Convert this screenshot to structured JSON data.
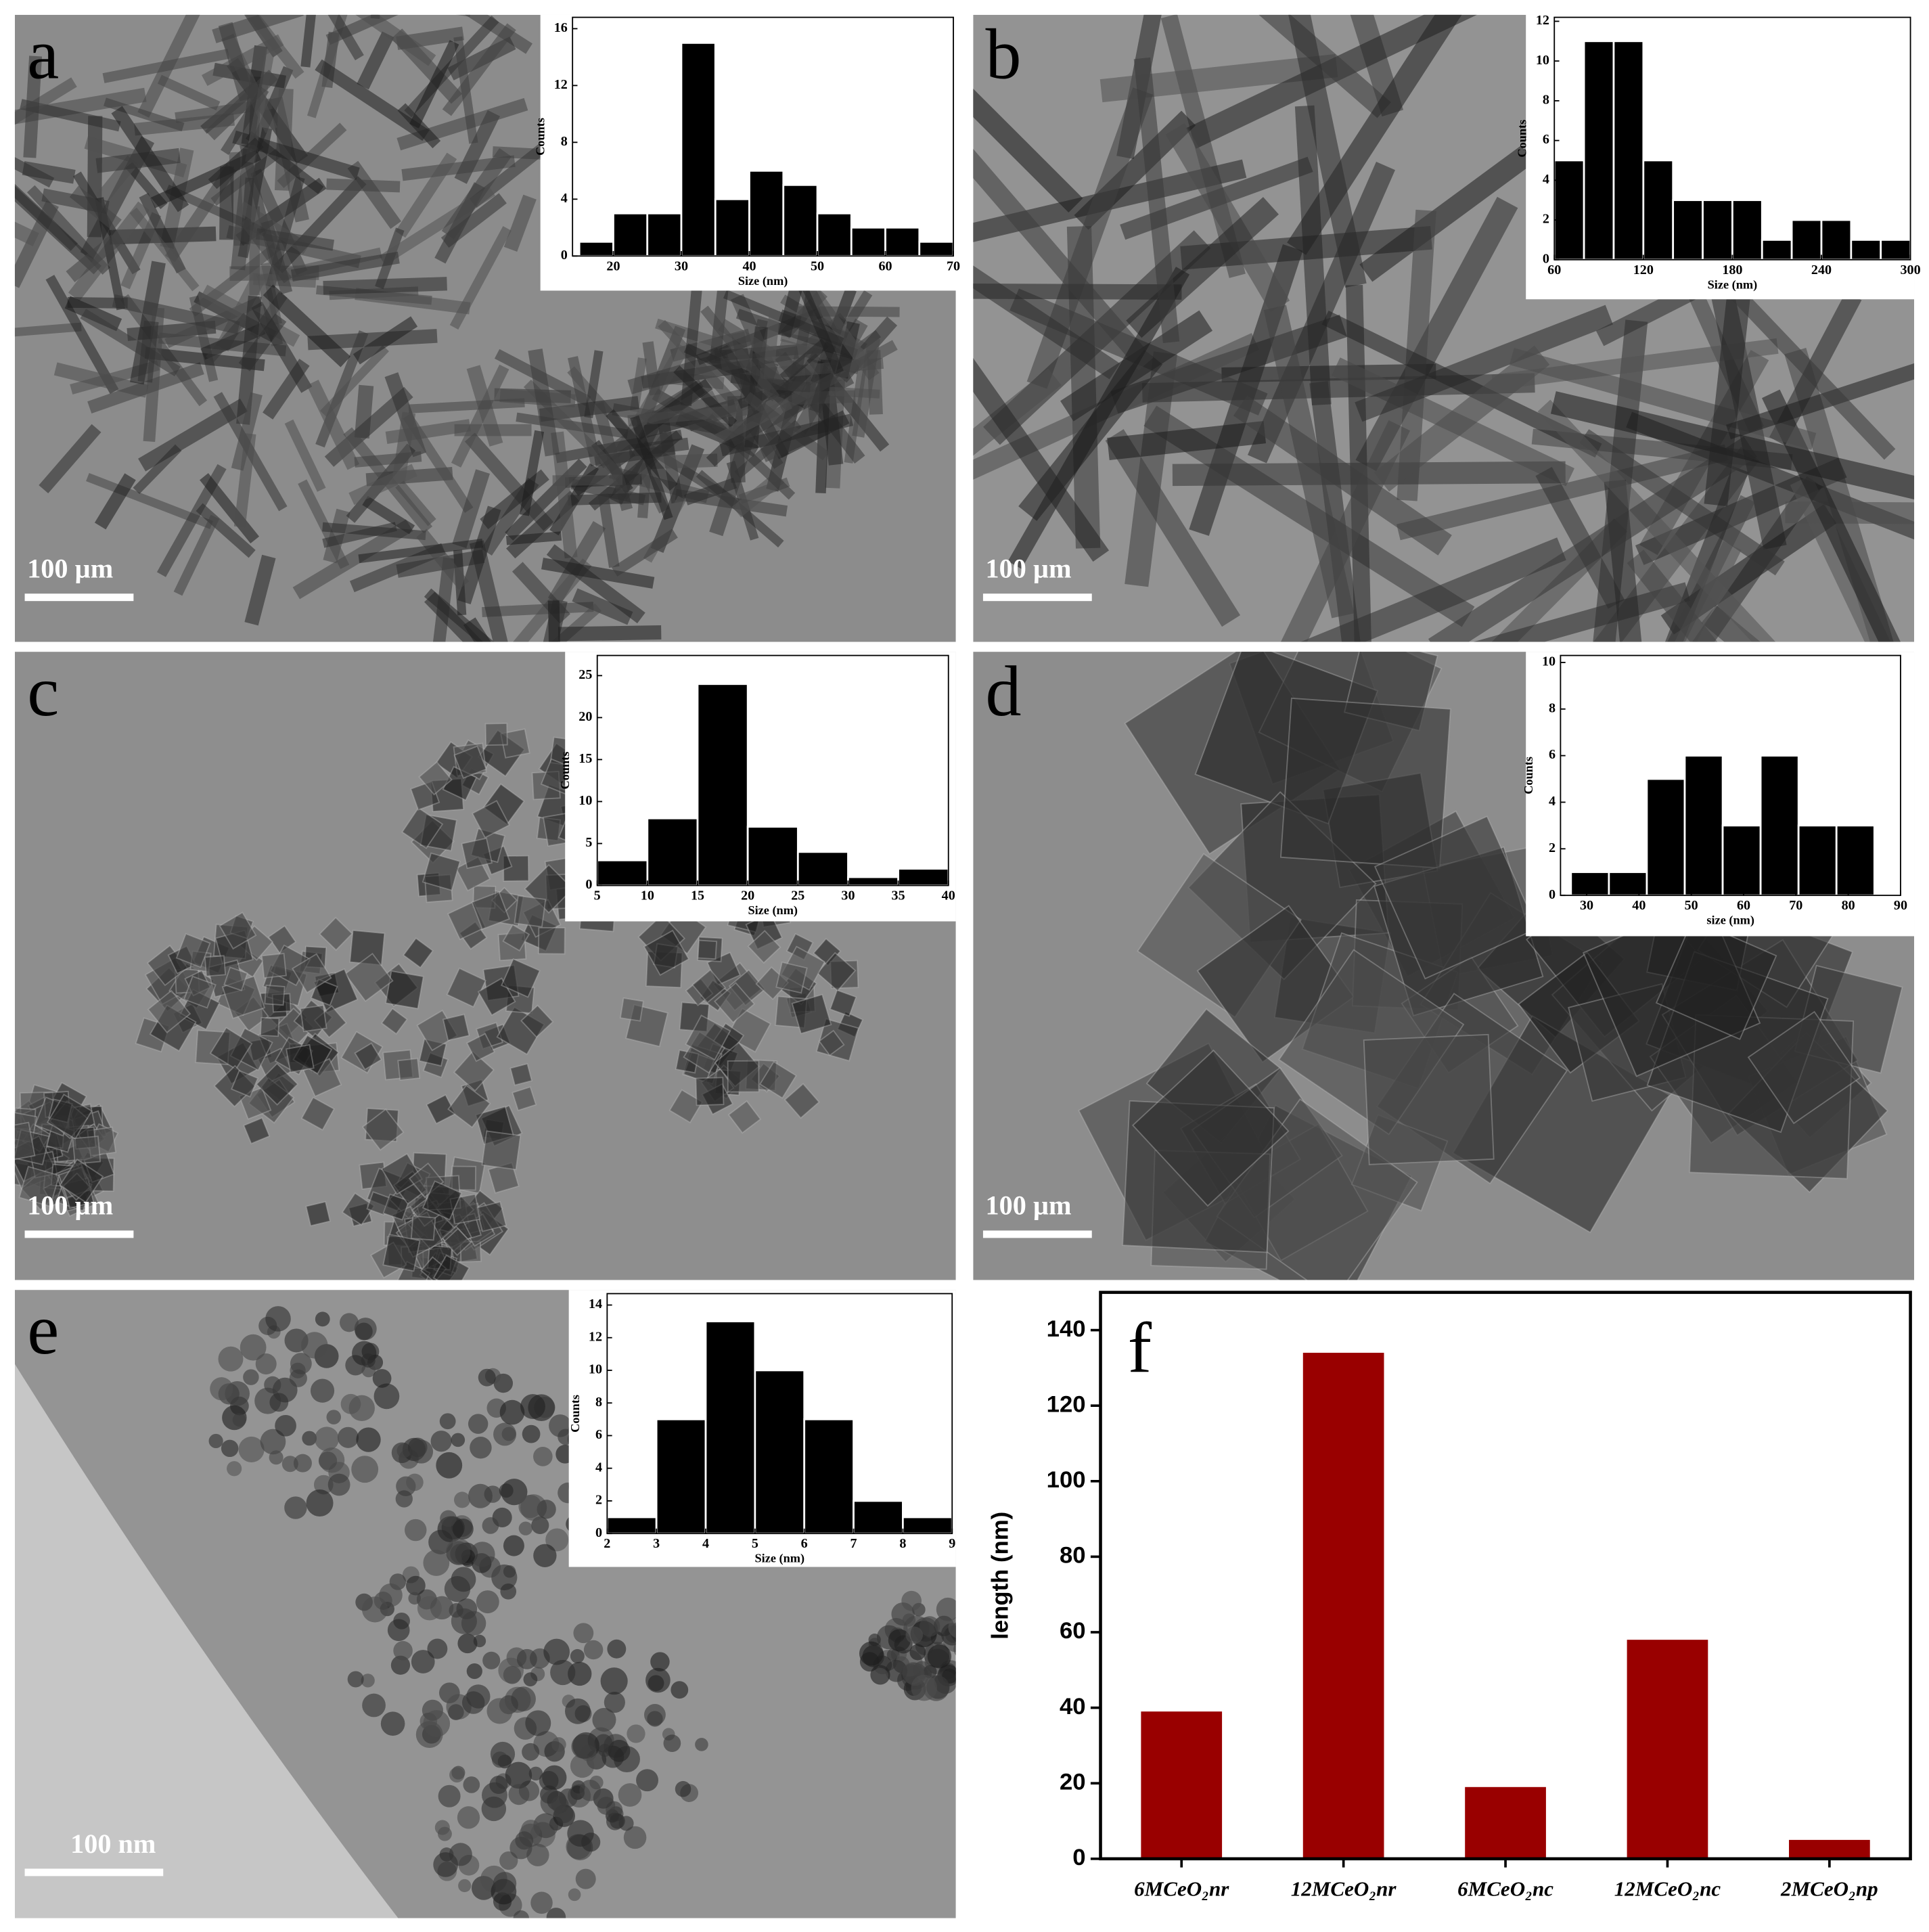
{
  "chart_data": [
    {
      "type": "histogram",
      "panel_label": "a",
      "scale_bar": "100 µm",
      "xlabel": "Size (nm)",
      "ylabel": "Counts",
      "color": "#000000",
      "bins": [
        15,
        20,
        25,
        30,
        35,
        40,
        45,
        50,
        55,
        60,
        65,
        70
      ],
      "values": [
        1,
        3,
        3,
        15,
        4,
        6,
        5,
        3,
        2,
        2,
        1
      ],
      "xlim": [
        14,
        70
      ],
      "xticks": [
        20,
        30,
        40,
        50,
        60,
        70
      ],
      "ylim": [
        0,
        16.8
      ],
      "yticks": [
        0,
        4,
        8,
        12,
        16
      ]
    },
    {
      "type": "histogram",
      "panel_label": "b",
      "scale_bar": "100 µm",
      "xlabel": "Size (nm)",
      "ylabel": "Counts",
      "color": "#000000",
      "bins": [
        60,
        80,
        100,
        120,
        140,
        160,
        180,
        200,
        220,
        240,
        260,
        280,
        300
      ],
      "values": [
        5,
        11,
        11,
        5,
        3,
        3,
        3,
        1,
        2,
        2,
        1,
        1
      ],
      "xlim": [
        60,
        300
      ],
      "xticks": [
        60,
        120,
        180,
        240,
        300
      ],
      "ylim": [
        0,
        12.2
      ],
      "yticks": [
        0,
        2,
        4,
        6,
        8,
        10,
        12
      ]
    },
    {
      "type": "histogram",
      "panel_label": "c",
      "scale_bar": "100 µm",
      "xlabel": "Size (nm)",
      "ylabel": "Counts",
      "color": "#000000",
      "bins": [
        5,
        10,
        15,
        20,
        25,
        30,
        35,
        40
      ],
      "values": [
        3,
        8,
        24,
        7,
        4,
        1,
        2
      ],
      "xlim": [
        5,
        40
      ],
      "xticks": [
        5,
        10,
        15,
        20,
        25,
        30,
        35,
        40
      ],
      "ylim": [
        0,
        27.4
      ],
      "yticks": [
        0,
        5,
        10,
        15,
        20,
        25
      ]
    },
    {
      "type": "histogram",
      "panel_label": "d",
      "scale_bar": "100 µm",
      "xlabel": "size (nm)",
      "ylabel": "Counts",
      "color": "#000000",
      "bins": [
        27,
        34.25,
        41.5,
        48.75,
        56,
        63.25,
        70.5,
        77.75,
        85
      ],
      "values": [
        1,
        1,
        5,
        6,
        3,
        6,
        3,
        3
      ],
      "xlim": [
        25,
        90
      ],
      "xticks": [
        30,
        40,
        50,
        60,
        70,
        80,
        90
      ],
      "ylim": [
        0,
        10.3
      ],
      "yticks": [
        0,
        2,
        4,
        6,
        8,
        10
      ]
    },
    {
      "type": "histogram",
      "panel_label": "e",
      "scale_bar": "100 nm",
      "xlabel": "Size (nm)",
      "ylabel": "Counts",
      "color": "#000000",
      "bins": [
        2,
        3,
        4,
        5,
        6,
        7,
        8,
        9
      ],
      "values": [
        1,
        7,
        13,
        10,
        7,
        2,
        1
      ],
      "xlim": [
        2,
        9
      ],
      "xticks": [
        2,
        3,
        4,
        5,
        6,
        7,
        8,
        9
      ],
      "ylim": [
        0,
        14.7
      ],
      "yticks": [
        0,
        2,
        4,
        6,
        8,
        10,
        12,
        14
      ]
    },
    {
      "type": "bar",
      "panel_label": "f",
      "ylabel": "length (nm)",
      "color": "#990000",
      "categories": [
        "6MCeO₂nr",
        "12MCeO₂nr",
        "6MCeO₂nc",
        "12MCeO₂nc",
        "2MCeO₂np"
      ],
      "values": [
        39,
        134,
        19,
        58,
        5
      ],
      "ylim": [
        0,
        150
      ],
      "yticks": [
        0,
        20,
        40,
        60,
        80,
        100,
        120,
        140
      ]
    }
  ]
}
